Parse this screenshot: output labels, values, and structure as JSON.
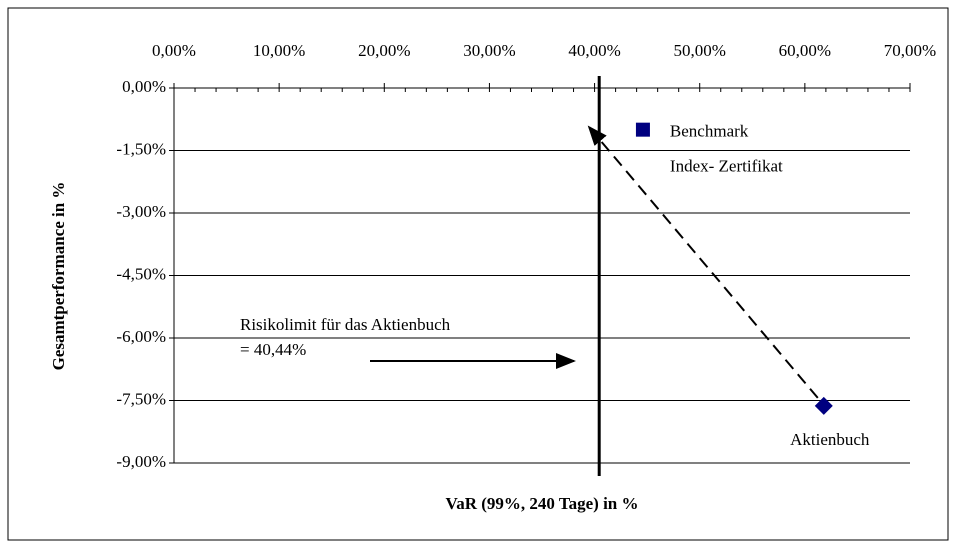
{
  "chart_data": {
    "type": "scatter",
    "xlabel": "VaR (99%, 240 Tage) in %",
    "ylabel": "Gesamtperformance in %",
    "xlim": [
      0,
      70
    ],
    "xticks": [
      {
        "value": 0,
        "label": "0,00%"
      },
      {
        "value": 10,
        "label": "10,00%"
      },
      {
        "value": 20,
        "label": "20,00%"
      },
      {
        "value": 30,
        "label": "30,00%"
      },
      {
        "value": 40,
        "label": "40,00%"
      },
      {
        "value": 50,
        "label": "50,00%"
      },
      {
        "value": 60,
        "label": "60,00%"
      },
      {
        "value": 70,
        "label": "70,00%"
      }
    ],
    "ylim": [
      -9,
      0
    ],
    "yticks": [
      {
        "value": 0,
        "label": "0,00%"
      },
      {
        "value": -1.5,
        "label": "-1,50%"
      },
      {
        "value": -3,
        "label": "-3,00%"
      },
      {
        "value": -4.5,
        "label": "-4,50%"
      },
      {
        "value": -6,
        "label": "-6,00%"
      },
      {
        "value": -7.5,
        "label": "-7,50%"
      },
      {
        "value": -9,
        "label": "-9,00%"
      }
    ],
    "grid": true,
    "series": [
      {
        "name": "Benchmark",
        "subtitle": "Index- Zertifikat",
        "color": "#000080",
        "marker": "square",
        "x": [
          44.6
        ],
        "values": [
          -1.0
        ]
      },
      {
        "name": "Aktienbuch",
        "color": "#000080",
        "marker": "diamond",
        "x": [
          61.8
        ],
        "values": [
          -7.63
        ]
      }
    ],
    "risk_limit": {
      "text": "Risikolimit für das Aktienbuch",
      "value": 40.44,
      "label": "= 40,44%"
    }
  }
}
